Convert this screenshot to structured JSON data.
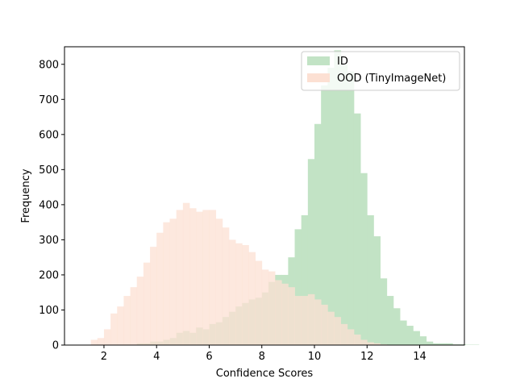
{
  "chart_data": {
    "type": "histogram",
    "xlabel": "Confidence Scores",
    "ylabel": "Frequency",
    "xlim": [
      0.5,
      15.7
    ],
    "ylim": [
      0,
      850
    ],
    "x_ticks": [
      2,
      4,
      6,
      8,
      10,
      12,
      14
    ],
    "y_ticks": [
      0,
      100,
      200,
      300,
      400,
      500,
      600,
      700,
      800
    ],
    "legend_position": "top-right",
    "bin_width": 0.25,
    "series": [
      {
        "name": "ID",
        "color": "#c2e3c5",
        "bins_start": 2.5,
        "counts": [
          0,
          0,
          0,
          5,
          5,
          10,
          10,
          15,
          20,
          35,
          40,
          35,
          50,
          45,
          60,
          65,
          80,
          95,
          110,
          120,
          130,
          135,
          150,
          180,
          200,
          200,
          250,
          330,
          370,
          530,
          630,
          740,
          790,
          840,
          800,
          780,
          660,
          490,
          370,
          310,
          190,
          140,
          105,
          70,
          55,
          40,
          25,
          10,
          5,
          5,
          5,
          2,
          2,
          1,
          1
        ]
      },
      {
        "name": "OOD (TinyImageNet)",
        "color": "#fce0d3",
        "bins_start": 1.5,
        "counts": [
          15,
          20,
          45,
          90,
          110,
          140,
          165,
          195,
          235,
          280,
          320,
          350,
          360,
          385,
          405,
          390,
          380,
          385,
          385,
          360,
          335,
          300,
          290,
          285,
          265,
          240,
          215,
          210,
          185,
          175,
          165,
          140,
          140,
          145,
          130,
          115,
          95,
          80,
          60,
          45,
          30,
          15,
          8,
          5,
          2
        ]
      }
    ]
  }
}
